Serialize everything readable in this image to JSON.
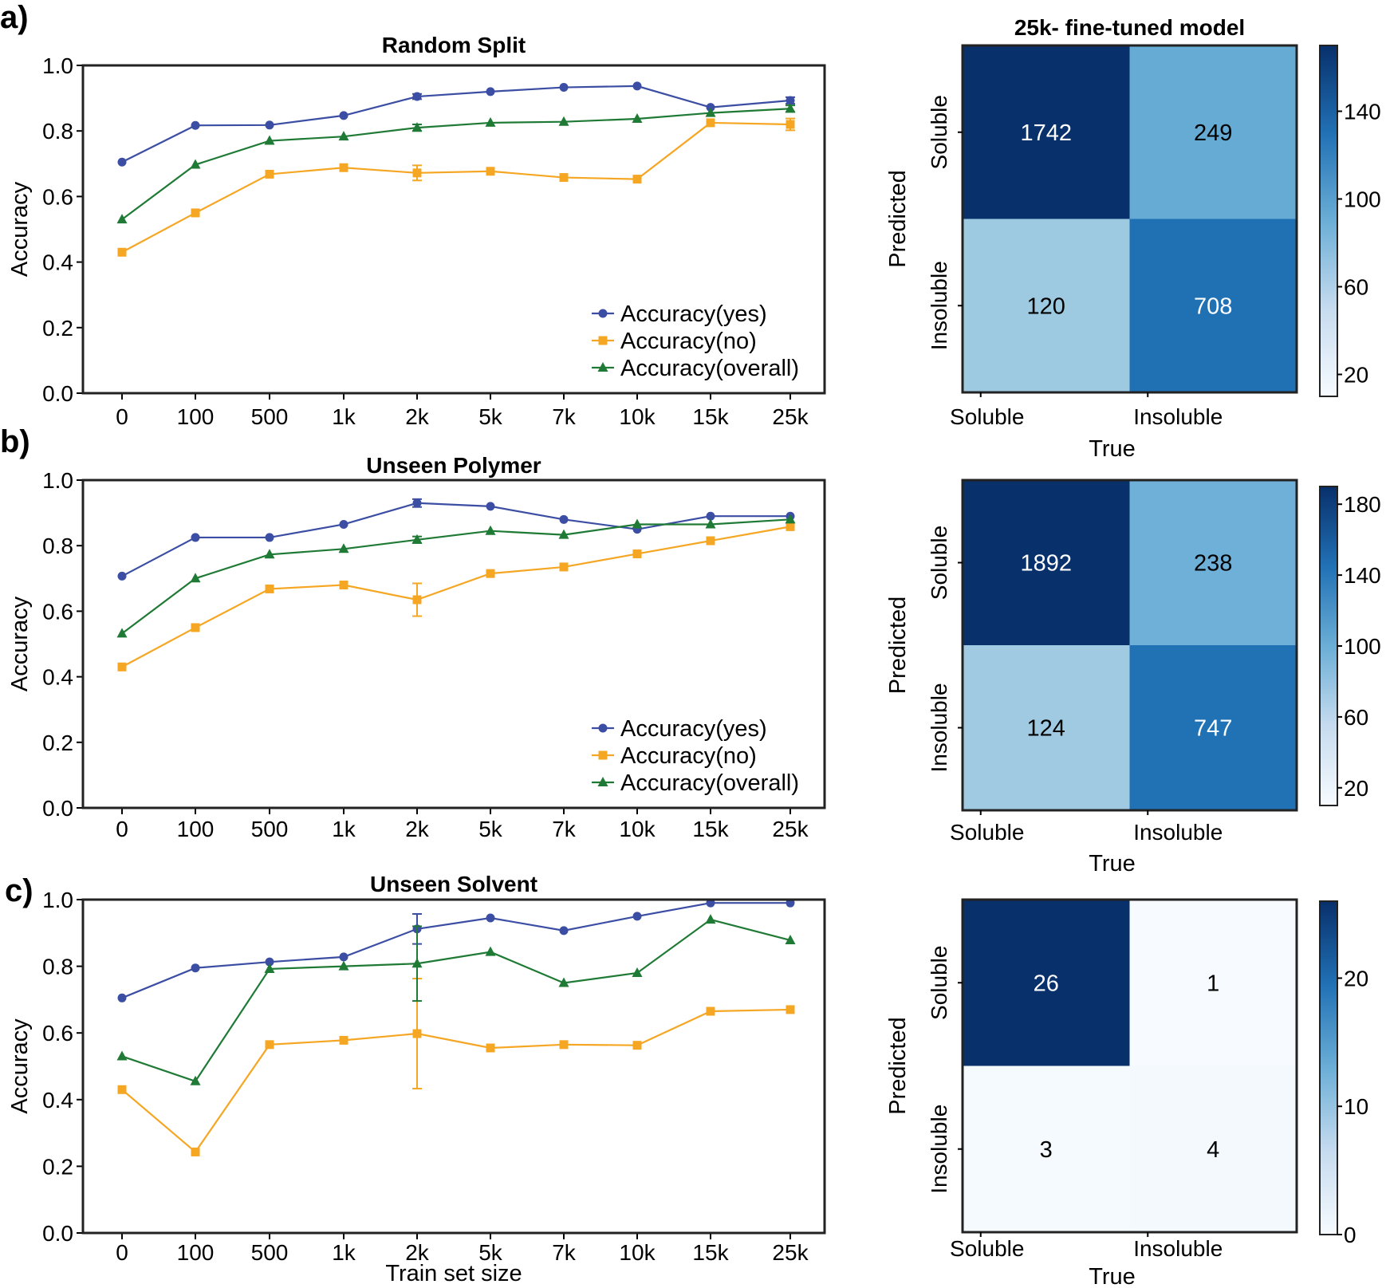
{
  "panel_labels": [
    "a)",
    "b)",
    "c)"
  ],
  "chart_data": [
    {
      "type": "line",
      "title": "Random Split",
      "xlabel": "",
      "ylabel": "Accuracy",
      "ylim": [
        0.0,
        1.0
      ],
      "yticks": [
        "0.0",
        "0.2",
        "0.4",
        "0.6",
        "0.8",
        "1.0"
      ],
      "yticks_values": [
        0.0,
        0.2,
        0.4,
        0.6,
        0.8,
        1.0
      ],
      "categories": [
        "0",
        "100",
        "500",
        "1k",
        "2k",
        "5k",
        "7k",
        "10k",
        "15k",
        "25k"
      ],
      "legend_position": "lower-right",
      "series": [
        {
          "name": "Accuracy(yes)",
          "color": "#3b4ea3",
          "marker": "circle",
          "values": [
            0.705,
            0.817,
            0.818,
            0.847,
            0.905,
            0.92,
            0.933,
            0.937,
            0.872,
            0.893
          ],
          "errors": [
            0,
            0,
            0,
            0,
            0.008,
            0,
            0,
            0,
            0,
            0.01
          ]
        },
        {
          "name": "Accuracy(no)",
          "color": "#f5a623",
          "marker": "square",
          "values": [
            0.43,
            0.55,
            0.668,
            0.688,
            0.672,
            0.677,
            0.658,
            0.653,
            0.825,
            0.82
          ],
          "errors": [
            0,
            0,
            0,
            0,
            0.023,
            0,
            0,
            0,
            0,
            0.018
          ]
        },
        {
          "name": "Accuracy(overall)",
          "color": "#1f7a35",
          "marker": "triangle",
          "values": [
            0.53,
            0.697,
            0.77,
            0.783,
            0.81,
            0.825,
            0.828,
            0.837,
            0.855,
            0.868
          ],
          "errors": [
            0,
            0,
            0,
            0,
            0.01,
            0,
            0,
            0,
            0,
            0.01
          ]
        }
      ]
    },
    {
      "type": "line",
      "title": "Unseen Polymer",
      "xlabel": "",
      "ylabel": "Accuracy",
      "ylim": [
        0.0,
        1.0
      ],
      "yticks": [
        "0.0",
        "0.2",
        "0.4",
        "0.6",
        "0.8",
        "1.0"
      ],
      "yticks_values": [
        0.0,
        0.2,
        0.4,
        0.6,
        0.8,
        1.0
      ],
      "categories": [
        "0",
        "100",
        "500",
        "1k",
        "2k",
        "5k",
        "7k",
        "10k",
        "15k",
        "25k"
      ],
      "legend_position": "lower-right",
      "series": [
        {
          "name": "Accuracy(yes)",
          "color": "#3b4ea3",
          "marker": "circle",
          "values": [
            0.707,
            0.825,
            0.825,
            0.865,
            0.93,
            0.92,
            0.88,
            0.85,
            0.89,
            0.89
          ],
          "errors": [
            0,
            0,
            0,
            0,
            0.012,
            0,
            0,
            0,
            0,
            0
          ]
        },
        {
          "name": "Accuracy(no)",
          "color": "#f5a623",
          "marker": "square",
          "values": [
            0.43,
            0.55,
            0.668,
            0.68,
            0.635,
            0.715,
            0.735,
            0.775,
            0.815,
            0.858
          ],
          "errors": [
            0,
            0,
            0,
            0,
            0.05,
            0,
            0,
            0,
            0,
            0
          ]
        },
        {
          "name": "Accuracy(overall)",
          "color": "#1f7a35",
          "marker": "triangle",
          "values": [
            0.532,
            0.7,
            0.773,
            0.79,
            0.818,
            0.845,
            0.833,
            0.865,
            0.865,
            0.88
          ],
          "errors": [
            0,
            0,
            0,
            0,
            0.01,
            0,
            0,
            0,
            0,
            0
          ]
        }
      ]
    },
    {
      "type": "line",
      "title": "Unseen Solvent",
      "xlabel": "Train set size",
      "ylabel": "Accuracy",
      "ylim": [
        0.0,
        1.0
      ],
      "yticks": [
        "0.0",
        "0.2",
        "0.4",
        "0.6",
        "0.8",
        "1.0"
      ],
      "yticks_values": [
        0.0,
        0.2,
        0.4,
        0.6,
        0.8,
        1.0
      ],
      "categories": [
        "0",
        "100",
        "500",
        "1k",
        "2k",
        "5k",
        "7k",
        "10k",
        "15k",
        "25k"
      ],
      "legend_position": "none",
      "series": [
        {
          "name": "Accuracy(yes)",
          "color": "#3b4ea3",
          "marker": "circle",
          "values": [
            0.705,
            0.795,
            0.813,
            0.828,
            0.912,
            0.945,
            0.907,
            0.95,
            0.99,
            0.99
          ],
          "errors": [
            0,
            0,
            0,
            0,
            0.045,
            0,
            0,
            0,
            0,
            0
          ]
        },
        {
          "name": "Accuracy(no)",
          "color": "#f5a623",
          "marker": "square",
          "values": [
            0.43,
            0.243,
            0.565,
            0.578,
            0.598,
            0.555,
            0.565,
            0.563,
            0.665,
            0.67
          ],
          "errors": [
            0,
            0,
            0,
            0,
            0.165,
            0,
            0,
            0,
            0,
            0
          ]
        },
        {
          "name": "Accuracy(overall)",
          "color": "#1f7a35",
          "marker": "triangle",
          "values": [
            0.53,
            0.455,
            0.792,
            0.8,
            0.808,
            0.843,
            0.75,
            0.78,
            0.94,
            0.878
          ],
          "errors": [
            0,
            0,
            0,
            0,
            0.112,
            0,
            0,
            0,
            0,
            0
          ]
        }
      ]
    },
    {
      "type": "heatmap",
      "title": "25k- fine-tuned model",
      "xlabel": "True",
      "ylabel": "Predicted",
      "x_categories": [
        "Soluble",
        "Insoluble"
      ],
      "y_categories": [
        "Soluble",
        "Insoluble"
      ],
      "values": [
        [
          1742,
          249
        ],
        [
          120,
          708
        ]
      ],
      "labels": [
        [
          "1742",
          "249"
        ],
        [
          "120",
          "708"
        ]
      ],
      "color_scale": [
        10,
        170
      ],
      "colorbar_ticks": [
        "20",
        "60",
        "100",
        "140"
      ],
      "colorbar_ticks_values": [
        20,
        60,
        100,
        140
      ]
    },
    {
      "type": "heatmap",
      "title": "",
      "xlabel": "True",
      "ylabel": "Predicted",
      "x_categories": [
        "Soluble",
        "Insoluble"
      ],
      "y_categories": [
        "Soluble",
        "Insoluble"
      ],
      "values": [
        [
          1892,
          238
        ],
        [
          124,
          747
        ]
      ],
      "labels": [
        [
          "1892",
          "238"
        ],
        [
          "124",
          "747"
        ]
      ],
      "color_scale": [
        10,
        190
      ],
      "colorbar_ticks": [
        "20",
        "60",
        "100",
        "140",
        "180"
      ],
      "colorbar_ticks_values": [
        20,
        60,
        100,
        140,
        180
      ]
    },
    {
      "type": "heatmap",
      "title": "",
      "xlabel": "True",
      "ylabel": "Predicted",
      "x_categories": [
        "Soluble",
        "Insoluble"
      ],
      "y_categories": [
        "Soluble",
        "Insoluble"
      ],
      "values": [
        [
          26,
          1
        ],
        [
          3,
          4
        ]
      ],
      "labels": [
        [
          "26",
          "1"
        ],
        [
          "3",
          "4"
        ]
      ],
      "color_scale": [
        0,
        26
      ],
      "colorbar_ticks": [
        "0",
        "10",
        "20"
      ],
      "colorbar_ticks_values": [
        0,
        10,
        20
      ]
    }
  ]
}
